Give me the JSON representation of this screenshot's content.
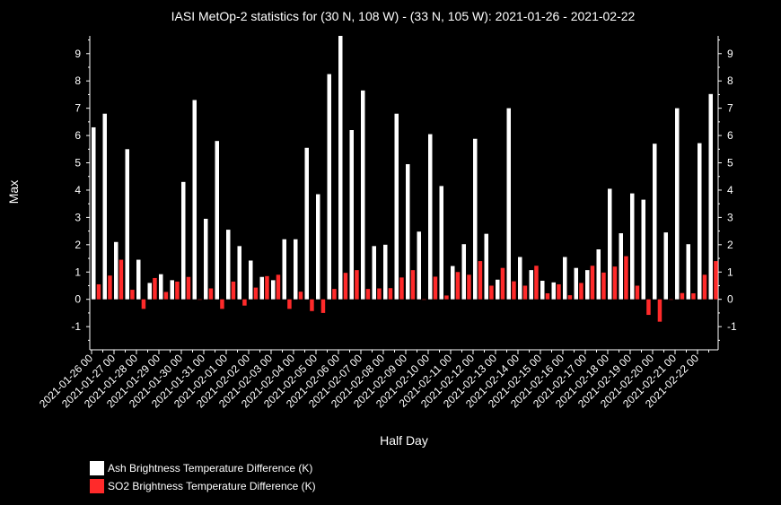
{
  "chart_data": {
    "type": "bar",
    "title": "IASI MetOp-2 statistics for (30 N, 108 W) - (33 N, 105 W): 2021-01-26 - 2021-02-22",
    "xlabel": "Half Day",
    "ylabel": "Max",
    "ylim": [
      -1.85,
      9.65
    ],
    "yticks": [
      -1,
      0,
      1,
      2,
      3,
      4,
      5,
      6,
      7,
      8,
      9
    ],
    "xtick_labels": [
      "2021-01-26 00",
      "2021-01-27 00",
      "2021-01-28 00",
      "2021-01-29 00",
      "2021-01-30 00",
      "2021-01-31 00",
      "2021-02-01 00",
      "2021-02-02 00",
      "2021-02-03 00",
      "2021-02-04 00",
      "2021-02-05 00",
      "2021-02-06 00",
      "2021-02-07 00",
      "2021-02-08 00",
      "2021-02-09 00",
      "2021-02-10 00",
      "2021-02-11 00",
      "2021-02-12 00",
      "2021-02-13 00",
      "2021-02-14 00",
      "2021-02-15 00",
      "2021-02-16 00",
      "2021-02-17 00",
      "2021-02-18 00",
      "2021-02-19 00",
      "2021-02-20 00",
      "2021-02-21 00",
      "2021-02-22 00"
    ],
    "series": [
      {
        "name": "Ash Brightness Temperature Difference (K)",
        "color": "#ffffff",
        "values": [
          6.3,
          6.8,
          2.1,
          5.5,
          1.45,
          0.6,
          0.92,
          0.7,
          4.3,
          7.3,
          2.95,
          5.8,
          2.55,
          1.95,
          1.42,
          0.82,
          0.7,
          2.2,
          2.2,
          5.55,
          3.85,
          8.25,
          9.65,
          6.2,
          7.65,
          1.95,
          2.0,
          6.8,
          4.95,
          2.48,
          6.05,
          4.15,
          1.22,
          2.02,
          5.88,
          2.4,
          0.72,
          7.0,
          1.55,
          1.07,
          0.68,
          0.62,
          1.55,
          1.15,
          1.07,
          1.83,
          4.05,
          2.42,
          3.88,
          3.65,
          5.7,
          2.45,
          7.0,
          2.02,
          5.72,
          7.52
        ]
      },
      {
        "name": "SO2 Brightness Temperature Difference (K)",
        "color": "#ff2a2a",
        "values": [
          0.55,
          0.87,
          1.45,
          0.35,
          -0.35,
          0.78,
          0.27,
          0.65,
          0.82,
          0.0,
          0.4,
          -0.35,
          0.65,
          -0.23,
          0.43,
          0.85,
          0.9,
          -0.35,
          0.28,
          -0.43,
          -0.5,
          0.38,
          0.97,
          1.07,
          0.38,
          0.4,
          0.41,
          0.8,
          1.07,
          0.0,
          0.83,
          0.14,
          1.0,
          0.9,
          1.4,
          0.5,
          1.15,
          0.66,
          0.5,
          1.23,
          0.22,
          0.55,
          0.15,
          0.6,
          1.23,
          0.98,
          1.2,
          1.58,
          0.5,
          -0.57,
          -0.82,
          0.0,
          0.23,
          0.22,
          0.9,
          1.4
        ]
      }
    ],
    "legend_placement": "bottom-left",
    "grid": false
  }
}
